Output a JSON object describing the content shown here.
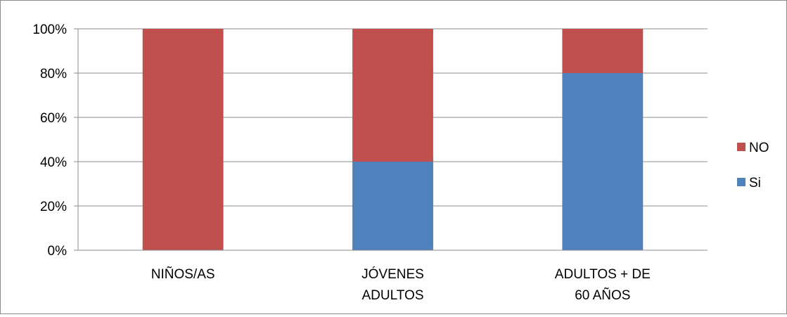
{
  "chart_data": {
    "type": "bar",
    "stacked": true,
    "percent": true,
    "categories": [
      [
        "NIÑOS/AS"
      ],
      [
        "JÓVENES",
        "ADULTOS"
      ],
      [
        "ADULTOS + DE",
        "60 AÑOS"
      ]
    ],
    "series": [
      {
        "name": "Si",
        "color": "#4F81BD",
        "values": [
          0,
          40,
          80
        ]
      },
      {
        "name": "NO",
        "color": "#C0504D",
        "values": [
          100,
          60,
          20
        ]
      }
    ],
    "y_ticks": [
      "0%",
      "20%",
      "40%",
      "60%",
      "80%",
      "100%"
    ],
    "ylim": [
      0,
      100
    ],
    "grid": true,
    "legend": {
      "position": "right",
      "order": [
        "NO",
        "Si"
      ]
    }
  }
}
